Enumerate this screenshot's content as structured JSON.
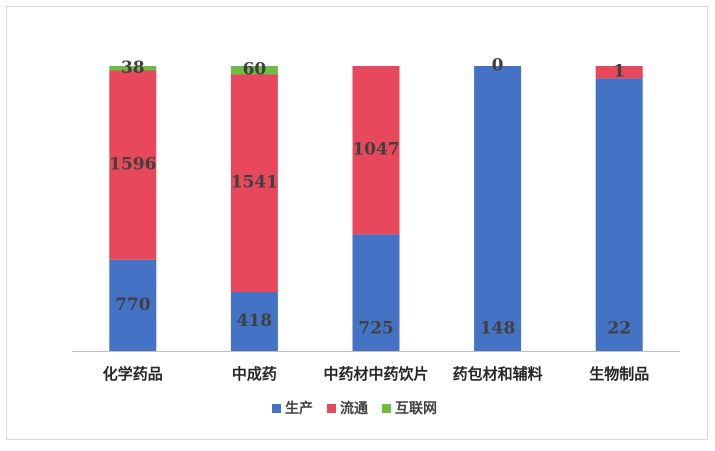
{
  "chart_data": {
    "type": "bar",
    "stacked": "percent",
    "categories": [
      "化学药品",
      "中成药",
      "中药材中药饮片",
      "药包材和辅料",
      "生物制品"
    ],
    "series": [
      {
        "name": "生产",
        "color": "#4472c4",
        "values": [
          770,
          418,
          725,
          148,
          22
        ]
      },
      {
        "name": "流通",
        "color": "#e8485b",
        "values": [
          1596,
          1541,
          1047,
          0,
          1
        ]
      },
      {
        "name": "互联网",
        "color": "#6dbd45",
        "values": [
          38,
          60,
          null,
          null,
          null
        ]
      }
    ],
    "legend": "bottom"
  }
}
